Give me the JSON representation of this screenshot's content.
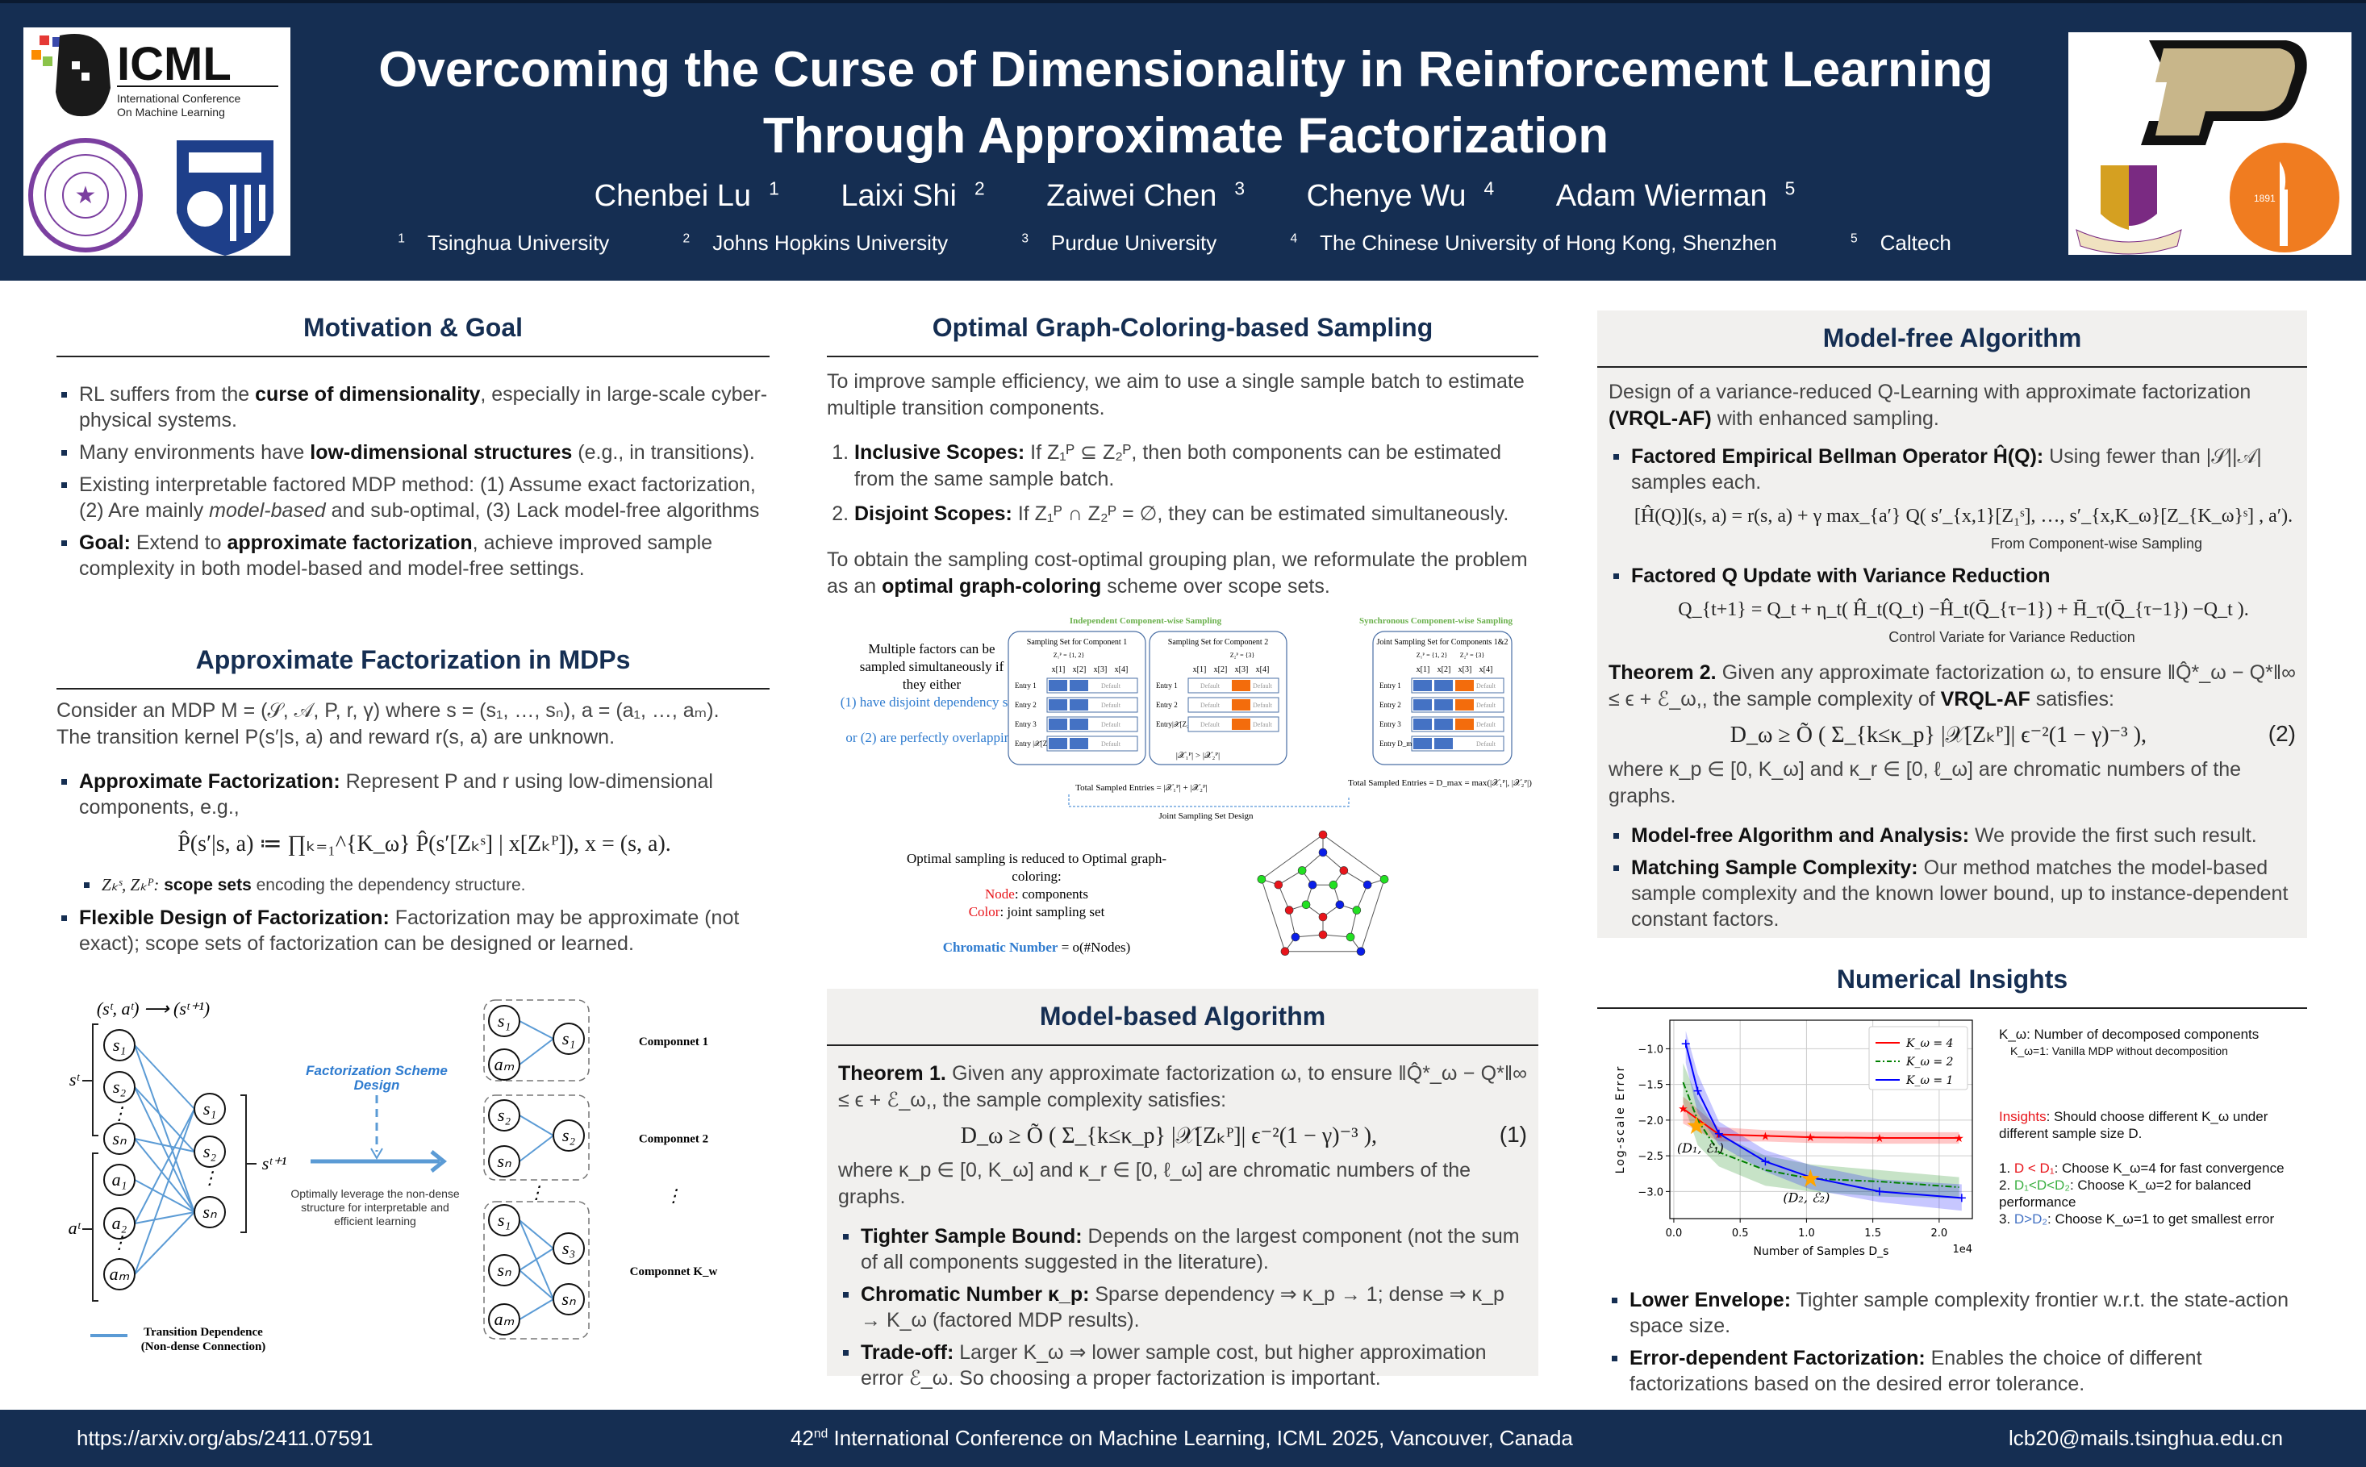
{
  "header": {
    "title_line1": "Overcoming the Curse of Dimensionality in Reinforcement Learning",
    "title_line2": "Through Approximate Factorization",
    "authors": [
      {
        "name": "Chenbei Lu",
        "sup": "1"
      },
      {
        "name": "Laixi Shi",
        "sup": "2"
      },
      {
        "name": "Zaiwei Chen",
        "sup": "3"
      },
      {
        "name": "Chenye Wu",
        "sup": "4"
      },
      {
        "name": "Adam Wierman",
        "sup": "5"
      }
    ],
    "affiliations": [
      {
        "sup": "1",
        "name": "Tsinghua University"
      },
      {
        "sup": "2",
        "name": "Johns Hopkins University"
      },
      {
        "sup": "3",
        "name": "Purdue University"
      },
      {
        "sup": "4",
        "name": "The Chinese University of Hong Kong, Shenzhen"
      },
      {
        "sup": "5",
        "name": "Caltech"
      }
    ],
    "left_logos": {
      "icml": "ICML",
      "icml_sub1": "International Conference",
      "icml_sub2": "On Machine Learning",
      "tsinghua": "TSINGHUA UNIVERSITY",
      "tsinghua_year": "1911"
    },
    "right_logos": {
      "purdue": "P",
      "caltech": "CALIFORNIA INSTITUTE OF TECHNOLOGY",
      "caltech_year": "1891"
    }
  },
  "motivation": {
    "title": "Motivation & Goal",
    "bullets": [
      {
        "pre": "RL suffers from the ",
        "bold": "curse of dimensionality",
        "post": ", especially in large-scale cyber-physical systems."
      },
      {
        "pre": "Many environments have ",
        "bold": "low-dimensional structures",
        "post": " (e.g., in transitions)."
      },
      {
        "pre": "Existing interpretable factored MDP method: (1) Assume exact factorization, (2) Are mainly ",
        "ital": "model-based",
        "post": " and sub-optimal, (3) Lack model-free algorithms"
      },
      {
        "bold": "Goal:",
        "pre": " Extend to ",
        "bold2": "approximate factorization",
        "post": ", achieve improved sample complexity in both model-based and model-free settings."
      }
    ]
  },
  "approx": {
    "title": "Approximate Factorization in MDPs",
    "intro1": "Consider an MDP M = (𝒮, 𝒜, P, r, γ) where s = (s₁, …, sₙ), a = (a₁, …, aₘ).",
    "intro2": "The transition kernel P(s′|s, a) and reward r(s, a) are unknown.",
    "b1_bold": "Approximate Factorization:",
    "b1_text": " Represent P and r using low-dimensional components, e.g.,",
    "equation": "P̂(s′|s, a) ≔ ∏ₖ₌₁^{K_ω} P̂(s′[Zₖˢ] | x[Zₖᴾ]),    x = (s, a).",
    "sub_math": "Zₖˢ, Zₖᴾ:",
    "sub_bold": " scope sets",
    "sub_text": " encoding the dependency structure.",
    "b2_bold": "Flexible Design of Factorization:",
    "b2_text": " Factorization may be approximate (not exact); scope sets of factorization can be designed or learned.",
    "diagram": {
      "top_label": "(sᵗ, aᵗ) ⟶ (sᵗ⁺¹)",
      "st": "sᵗ",
      "at": "aᵗ",
      "st1": "sᵗ⁺¹",
      "left_nodes": [
        "s₁",
        "s₂",
        "sₙ",
        "a₁",
        "a₂",
        "aₘ"
      ],
      "mid_nodes": [
        "s₁",
        "s₂",
        "sₙ"
      ],
      "scheme_label1": "Factorization Scheme",
      "scheme_label2": "Design",
      "leverage1": "Optimally leverage the non-dense",
      "leverage2": "structure for interpretable and",
      "leverage3": "efficient learning",
      "legend1": "Transition Dependence",
      "legend2": "(Non-dense Connection)",
      "components": [
        {
          "label": "Componnet 1",
          "inputs": [
            "s₁",
            "aₘ"
          ],
          "outputs": [
            "s₁"
          ]
        },
        {
          "label": "Componnet 2",
          "inputs": [
            "s₂",
            "sₙ"
          ],
          "outputs": [
            "s₂"
          ]
        },
        {
          "label": "Componnet K_w",
          "inputs": [
            "s₁",
            "sₙ",
            "aₘ"
          ],
          "outputs": [
            "s₃",
            "sₙ"
          ]
        }
      ]
    }
  },
  "sampling": {
    "title": "Optimal Graph-Coloring-based Sampling",
    "intro": "To improve sample efficiency, we aim to use a single sample batch to estimate multiple transition components.",
    "items": [
      {
        "bold": "Inclusive Scopes:",
        "text": " If Z₁ᴾ ⊆ Z₂ᴾ, then both components can be estimated from the same sample batch."
      },
      {
        "bold": "Disjoint Scopes:",
        "text": " If Z₁ᴾ ∩ Z₂ᴾ = ∅, they can be estimated simultaneously."
      }
    ],
    "outro_pre": "To obtain the sampling cost-optimal grouping plan, we reformulate the problem as an ",
    "outro_bold": "optimal graph-coloring",
    "outro_post": " scheme over scope sets.",
    "figure": {
      "left_text": [
        "Multiple factors can be",
        "sampled simultaneously if",
        "they either",
        "(1) have disjoint dependency sets",
        "or (2) are perfectly overlapping"
      ],
      "independent_title": "Independent Component-wise Sampling",
      "synchronous_title": "Synchronous Component-wise Sampling",
      "set1_title": "Sampling Set for Component 1",
      "set2_title": "Sampling Set for Component 2",
      "joint_title_bold": "Joint Sampling Set",
      "joint_title_rest": " for Components 1&2",
      "z1": "Z₁ᴾ = {1, 2}",
      "z2": "Z₂ᴾ = {3}",
      "cols": [
        "x[1]",
        "x[2]",
        "x[3]",
        "x[4]"
      ],
      "entries": [
        "Entry 1",
        "Entry 2",
        "Entry 3"
      ],
      "entry_last1": "Entry |𝒳[Z₁ᴾ]|",
      "entry_last2": "Entry|𝒳[Z₂ᴾ]|",
      "entry_dmax": "Entry D_max",
      "default": "Default",
      "compare": "|𝒳₁ᴾ| > |𝒳₂ᴾ|",
      "total_left": "Total Sampled Entries = |𝒳₁ᴾ| + |𝒳₂ᴾ|",
      "total_right": "Total Sampled Entries = D_max = max(|𝒳₁ᴾ|, |𝒳₂ᴾ|)",
      "joint_design": "Joint Sampling Set Design",
      "coloring_l1": "Optimal sampling is reduced to Optimal graph-",
      "coloring_l2": "coloring:",
      "node_label": "Node",
      "node_text": ": components",
      "color_label": "Color",
      "color_text": ": joint sampling set",
      "chromatic_label": "Chromatic Number",
      "chromatic_text": " = o(#Nodes)",
      "colors": {
        "blue": "#4472c4",
        "orange": "#f36c0c",
        "red": "#e8151b",
        "green": "#22e022",
        "nblue": "#0a1ee8"
      }
    }
  },
  "model_based": {
    "title": "Model-based Algorithm",
    "theorem_label": "Theorem 1.",
    "theorem_text": " Given any approximate factorization ω, to ensure ‖Q̂*_ω − Q*‖∞ ≤ ϵ + ℰ_ω,, the sample complexity satisfies:",
    "equation": "D_ω ≥ Õ ( Σ_{k≤κ_p} |𝒳[Zₖᴾ]| ϵ⁻²(1 − γ)⁻³ ),",
    "eq_num": "(1)",
    "where": "where κ_p ∈ [0, K_ω] and κ_r ∈ [0, ℓ_ω] are chromatic numbers of the graphs.",
    "bullets": [
      {
        "bold": "Tighter Sample Bound:",
        "text": " Depends on the largest component (not the sum of all components suggested in the literature)."
      },
      {
        "bold": "Chromatic Number κ_p:",
        "text": " Sparse dependency ⇒ κ_p → 1; dense ⇒ κ_p → K_ω (factored MDP results)."
      },
      {
        "bold": "Trade-off:",
        "text": " Larger K_ω ⇒ lower sample cost, but higher approximation error ℰ_ω. So choosing a proper factorization is important."
      }
    ]
  },
  "model_free": {
    "title": "Model-free Algorithm",
    "intro_pre": "Design of a variance-reduced Q-Learning with approximate factorization ",
    "intro_bold": "(VRQL-AF)",
    "intro_post": " with enhanced sampling.",
    "b1_bold": "Factored Empirical Bellman Operator Ĥ(Q):",
    "b1_text": " Using fewer than |𝒮||𝒜| samples each.",
    "eq1": "[Ĥ(Q)](s, a) = r(s, a) + γ max_{a′} Q( s′_{x,1}[Z₁ˢ], …, s′_{x,K_ω}[Z_{K_ω}ˢ] , a′).",
    "eq1_caption": "From Component-wise Sampling",
    "b2_bold": "Factored Q Update with Variance Reduction",
    "eq2": "Q_{t+1} = Q_t + η_t( Ĥ_t(Q_t)  −Ĥ_t(Q̄_{τ−1}) + H̄_τ(Q̄_{τ−1})  −Q_t ).",
    "eq2_caption": "Control Variate for Variance Reduction",
    "theorem_label": "Theorem 2.",
    "theorem_text_pre": " Given any approximate factorization ω, to ensure ‖Q̂*_ω − Q*‖∞ ≤ ϵ + ℰ_ω,, the sample complexity of ",
    "theorem_bold": "VRQL-AF",
    "theorem_text_post": " satisfies:",
    "equation": "D_ω ≥ Õ ( Σ_{k≤κ_p} |𝒳[Zₖᴾ]| ϵ⁻²(1 − γ)⁻³ ),",
    "eq_num": "(2)",
    "where": "where κ_p ∈ [0, K_ω] and κ_r ∈ [0, ℓ_ω] are chromatic numbers of the graphs.",
    "bullets": [
      {
        "bold": "Model-free Algorithm and Analysis:",
        "text": " We provide the first such result."
      },
      {
        "bold": "Matching Sample Complexity:",
        "text": " Our method matches the model-based sample complexity and the known lower bound, up to instance-dependent constant factors."
      }
    ]
  },
  "numerical": {
    "title": "Numerical Insights",
    "kw_def": "K_ω: Number of decomposed components",
    "kw_vanilla": "K_ω=1: Vanilla MDP without decomposition",
    "insights_label": "Insights",
    "insights_text": ": Should choose different K_ω under different sample size D.",
    "rules": [
      {
        "num": "1. ",
        "cond": "D < D₁",
        "text": ": Choose K_ω=4 for fast convergence",
        "color": "#e8151b"
      },
      {
        "num": "2. ",
        "cond": "D₁<D<D₂",
        "text": ": Choose K_ω=2 for balanced performance",
        "color": "#3cb043"
      },
      {
        "num": "3. ",
        "cond": "D>D₂",
        "text": ": Choose K_ω=1 to get smallest error",
        "color": "#4472c4"
      }
    ],
    "bullets": [
      {
        "bold": "Lower Envelope:",
        "text": " Tighter sample complexity frontier w.r.t. the state-action space size."
      },
      {
        "bold": "Error-dependent Factorization:",
        "text": " Enables the choice of different factorizations based on the desired error tolerance."
      }
    ]
  },
  "chart_data": {
    "type": "line",
    "title": "",
    "xlabel": "Number of Samples D_s",
    "ylabel": "Log-scale Error",
    "x_multiplier": "1e4",
    "xlim": [
      -0.03,
      2.25
    ],
    "ylim": [
      -3.38,
      -0.6
    ],
    "xticks": [
      0.0,
      0.5,
      1.0,
      1.5,
      2.0
    ],
    "xtick_labels": [
      "0.0",
      "0.5",
      "1.0",
      "1.5",
      "2.0"
    ],
    "yticks": [
      -1.0,
      -1.5,
      -2.0,
      -2.5,
      -3.0
    ],
    "ytick_labels": [
      "−1.0",
      "−1.5",
      "−2.0",
      "−2.5",
      "−3.0"
    ],
    "grid": true,
    "legend_position": "top-right",
    "series": [
      {
        "name": "K_ω = 4",
        "color": "#ff0000",
        "style": "solid",
        "marker": "star",
        "x": [
          0.07,
          0.34,
          0.69,
          1.03,
          1.55,
          2.15
        ],
        "y": [
          -1.84,
          -2.2,
          -2.22,
          -2.24,
          -2.25,
          -2.25
        ],
        "band_low": [
          -2.05,
          -2.3,
          -2.3,
          -2.32,
          -2.33,
          -2.33
        ],
        "band_high": [
          -1.67,
          -2.1,
          -2.14,
          -2.16,
          -2.17,
          -2.17
        ]
      },
      {
        "name": "K_ω = 2",
        "color": "#008000",
        "style": "dashdot",
        "marker": "none",
        "x": [
          0.07,
          0.18,
          0.34,
          0.69,
          1.03,
          1.55,
          2.15
        ],
        "y": [
          -1.47,
          -2.0,
          -2.45,
          -2.7,
          -2.82,
          -2.86,
          -2.94
        ],
        "band_low": [
          -1.75,
          -2.35,
          -2.65,
          -2.92,
          -3.0,
          -3.07,
          -3.1
        ],
        "band_high": [
          -1.2,
          -1.7,
          -2.2,
          -2.5,
          -2.62,
          -2.7,
          -2.8
        ]
      },
      {
        "name": "K_ω = 1",
        "color": "#0000ff",
        "style": "solid",
        "marker": "plus",
        "x": [
          0.09,
          0.18,
          0.34,
          0.69,
          1.03,
          1.55,
          2.17
        ],
        "y": [
          -0.93,
          -1.59,
          -2.19,
          -2.58,
          -2.8,
          -3.0,
          -3.09
        ],
        "band_low": [
          -1.2,
          -1.9,
          -2.35,
          -2.72,
          -2.97,
          -3.15,
          -3.27
        ],
        "band_high": [
          -0.75,
          -1.35,
          -2.02,
          -2.42,
          -2.63,
          -2.83,
          -2.9
        ]
      }
    ],
    "annotations": [
      {
        "text": "(D₁, ℰ₁)",
        "x": 0.17,
        "y": -2.07,
        "star_color": "#ffa500"
      },
      {
        "text": "(D₂, ℰ₂)",
        "x": 1.03,
        "y": -2.81,
        "star_color": "#ffa500"
      }
    ]
  },
  "footer": {
    "url": "https://arxiv.org/abs/2411.07591",
    "conf_pre": "42",
    "conf_sup": "nd",
    "conf_post": " International Conference on Machine Learning, ICML 2025, Vancouver, Canada",
    "email": "lcb20@mails.tsinghua.edu.cn"
  }
}
